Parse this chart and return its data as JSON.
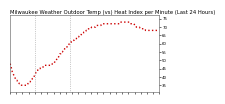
{
  "title": "Milwaukee Weather Outdoor Temp (vs) Heat Index per Minute (Last 24 Hours)",
  "background_color": "#ffffff",
  "plot_bg_color": "#ffffff",
  "line_color": "#cc0000",
  "line_style": "dotted",
  "line_width": 1.0,
  "y_label_side": "right",
  "ylim": [
    31,
    77
  ],
  "yticks": [
    35,
    40,
    45,
    50,
    55,
    60,
    65,
    70,
    75
  ],
  "grid_color": "#cccccc",
  "vline_x": [
    0.165,
    0.4
  ],
  "vline_color": "#999999",
  "vline_style": "dotted",
  "title_fontsize": 3.8,
  "tick_fontsize": 2.8,
  "data_y": [
    48,
    47,
    45,
    43,
    42,
    41,
    40,
    39,
    38,
    38,
    37,
    37,
    36,
    36,
    36,
    35,
    35,
    35,
    35,
    35,
    35,
    35,
    36,
    36,
    36,
    37,
    37,
    38,
    38,
    39,
    39,
    40,
    41,
    42,
    43,
    44,
    44,
    45,
    45,
    45,
    46,
    46,
    46,
    46,
    46,
    47,
    47,
    47,
    47,
    47,
    47,
    47,
    47,
    47,
    47,
    48,
    48,
    48,
    49,
    49,
    50,
    51,
    51,
    52,
    53,
    54,
    54,
    55,
    55,
    56,
    56,
    57,
    57,
    58,
    58,
    59,
    59,
    60,
    60,
    61,
    61,
    61,
    62,
    62,
    63,
    63,
    63,
    64,
    64,
    64,
    65,
    65,
    65,
    66,
    66,
    66,
    67,
    67,
    67,
    68,
    68,
    68,
    69,
    69,
    69,
    69,
    70,
    70,
    70,
    70,
    70,
    70,
    71,
    71,
    71,
    71,
    71,
    71,
    71,
    72,
    72,
    72,
    72,
    72,
    72,
    72,
    72,
    72,
    72,
    72,
    72,
    72,
    72,
    72,
    72,
    72,
    72,
    72,
    72,
    72,
    72,
    72,
    72,
    73,
    73,
    73,
    73,
    73,
    73,
    73,
    73,
    73,
    73,
    73,
    73,
    73,
    73,
    72,
    72,
    72,
    72,
    72,
    71,
    71,
    70,
    70,
    70,
    70,
    70,
    69,
    69,
    69,
    69,
    69,
    69,
    69,
    68,
    68,
    68,
    68,
    68,
    68,
    68,
    68,
    68,
    68,
    68,
    68,
    68,
    68,
    68,
    68,
    68,
    68,
    68
  ]
}
